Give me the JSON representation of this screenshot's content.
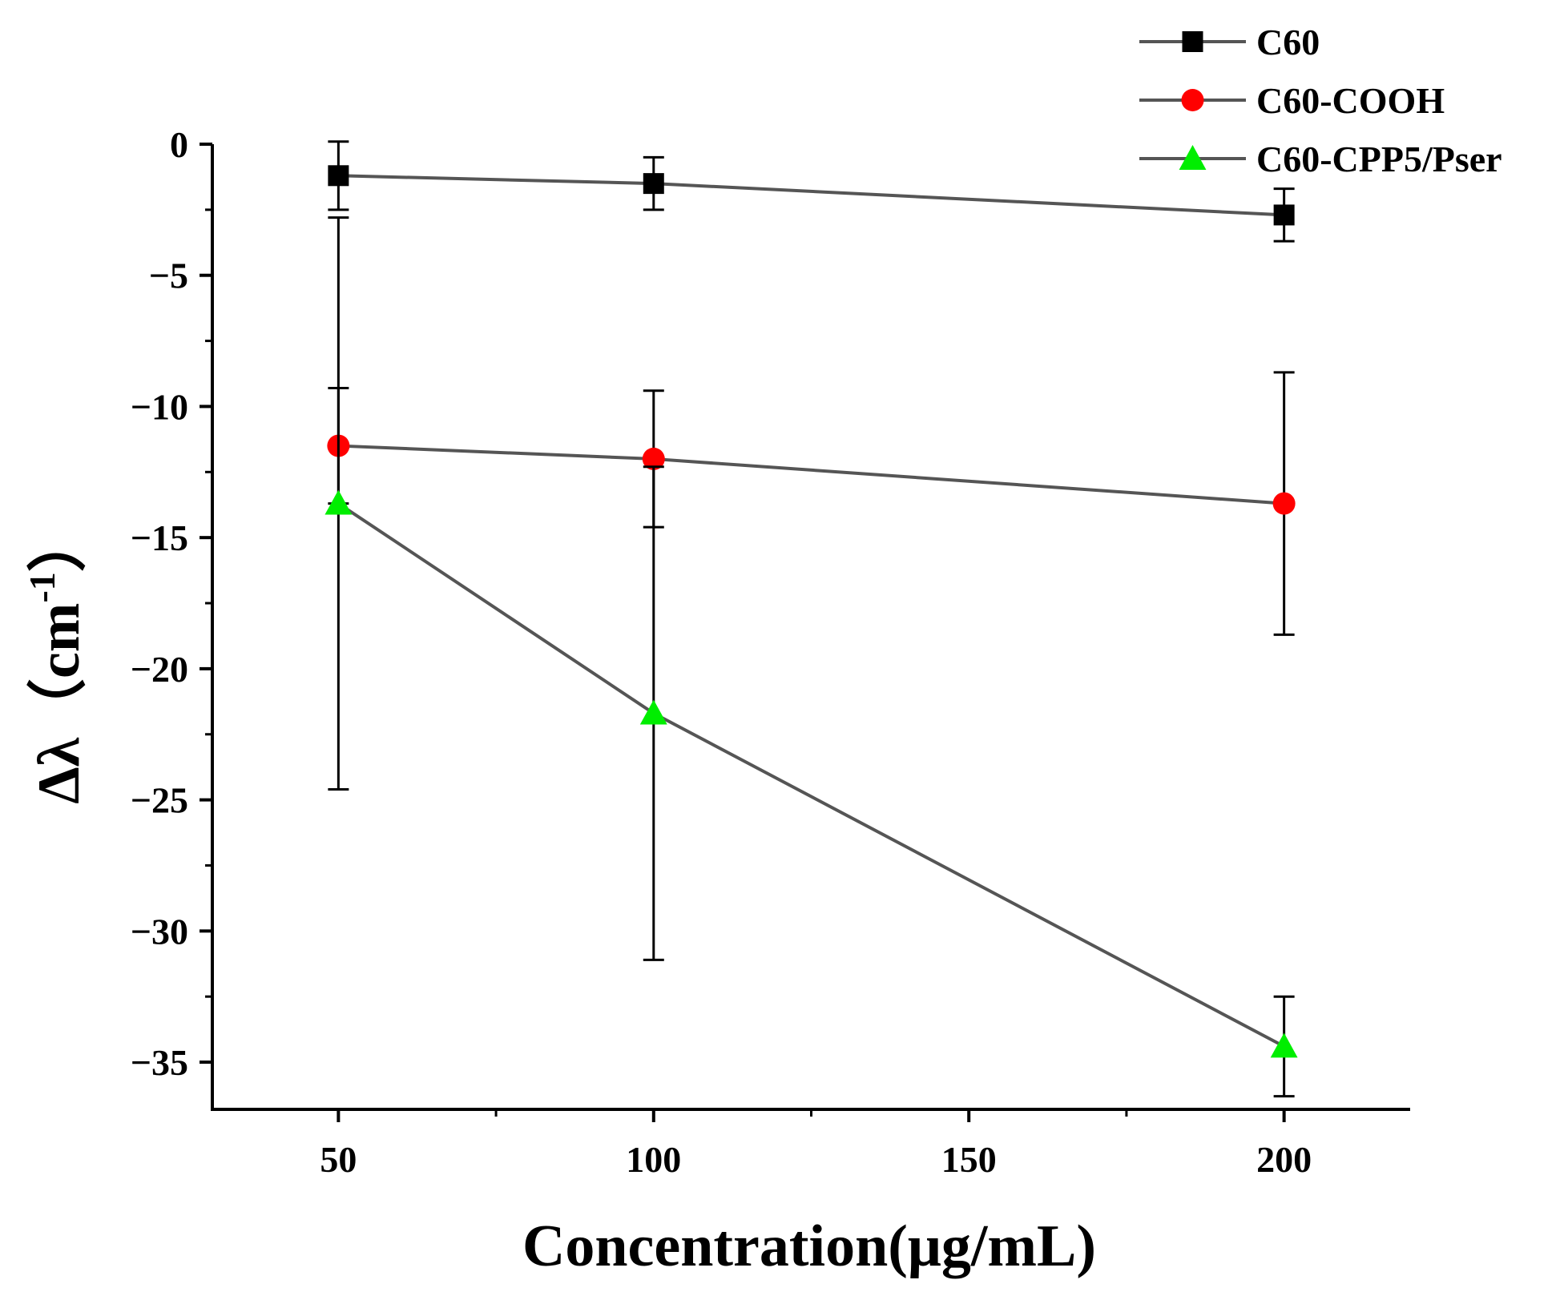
{
  "chart_data": {
    "type": "line",
    "title": "",
    "xlabel": "Concentration(μg/mL)",
    "ylabel_main": "Δλ（cm",
    "ylabel_sup": "-1",
    "ylabel_close": "）",
    "xlim": [
      30,
      220
    ],
    "ylim": [
      -36.8,
      0
    ],
    "x_ticks": [
      50,
      100,
      150,
      200
    ],
    "x_tick_labels": [
      "50",
      "100",
      "150",
      "200"
    ],
    "y_ticks": [
      0,
      -5,
      -10,
      -15,
      -20,
      -25,
      -30,
      -35
    ],
    "y_tick_labels": [
      "0",
      "−5",
      "−10",
      "−15",
      "−20",
      "−25",
      "−30",
      "−35"
    ],
    "grid": false,
    "legend_position": "top-right",
    "x": [
      50,
      100,
      200
    ],
    "series": [
      {
        "name": "C60",
        "marker": "square",
        "color": "#000000",
        "line_color": "#555555",
        "values": [
          -1.2,
          -1.5,
          -2.7
        ],
        "errors": [
          1.3,
          1.0,
          1.0
        ]
      },
      {
        "name": "C60-COOH",
        "marker": "circle",
        "color": "#ff0000",
        "line_color": "#555555",
        "values": [
          -11.5,
          -12.0,
          -13.7
        ],
        "errors": [
          2.2,
          2.6,
          5.0
        ]
      },
      {
        "name": "C60-CPP5/Pser",
        "marker": "triangle",
        "color": "#00ee00",
        "line_color": "#555555",
        "values": [
          -13.7,
          -21.7,
          -34.4
        ],
        "errors": [
          10.9,
          9.4,
          1.9
        ]
      }
    ]
  }
}
